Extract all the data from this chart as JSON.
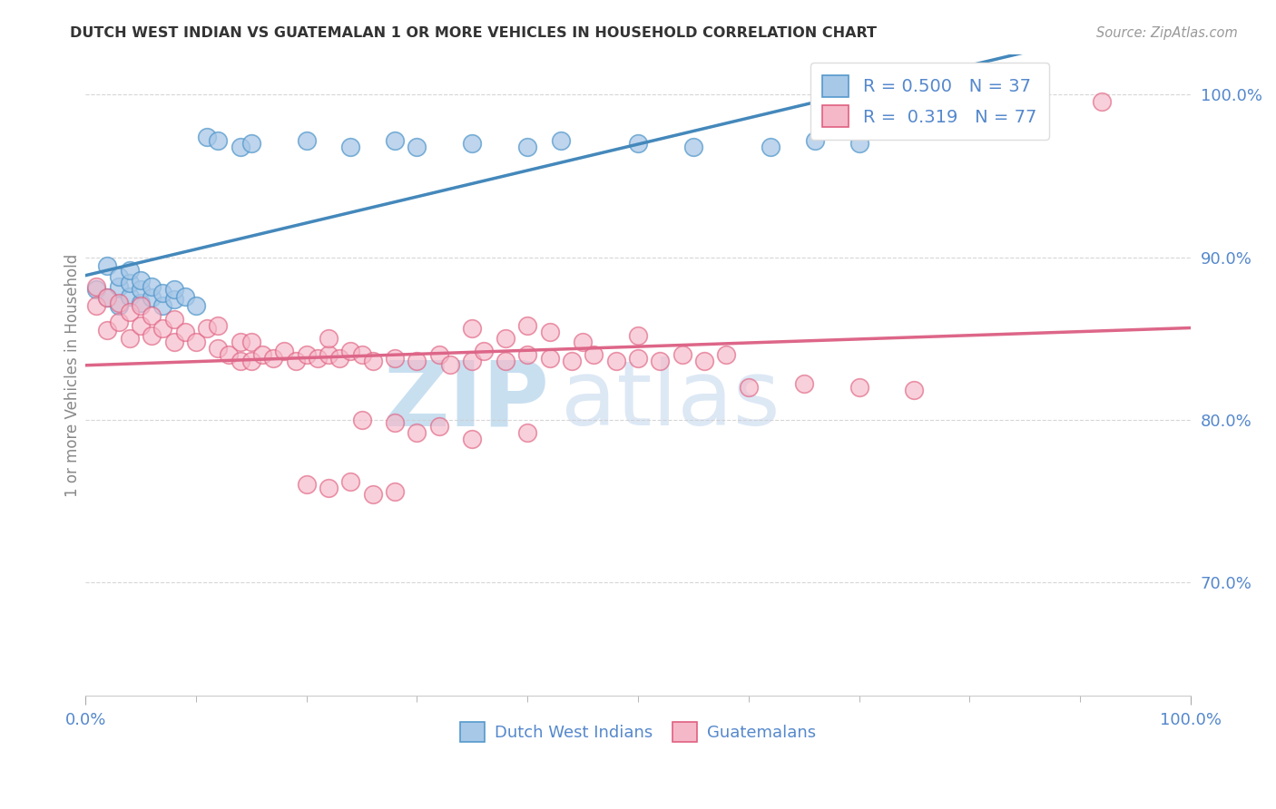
{
  "title": "DUTCH WEST INDIAN VS GUATEMALAN 1 OR MORE VEHICLES IN HOUSEHOLD CORRELATION CHART",
  "source": "Source: ZipAtlas.com",
  "ylabel": "1 or more Vehicles in Household",
  "legend_label1": "Dutch West Indians",
  "legend_label2": "Guatemalans",
  "R1": 0.5,
  "N1": 37,
  "R2": 0.319,
  "N2": 77,
  "color_blue_fill": "#a8c8e8",
  "color_blue_edge": "#5599cc",
  "color_blue_line": "#4488bb",
  "color_pink_fill": "#f5b8c8",
  "color_pink_edge": "#e06080",
  "color_pink_line": "#dd6688",
  "color_ytick": "#5588cc",
  "color_xtick": "#5588cc",
  "color_ylabel": "#888888",
  "color_grid": "#cccccc",
  "color_watermark_zip": "#c8dff0",
  "color_watermark_atlas": "#dde8f5",
  "xlim": [
    0.0,
    1.0
  ],
  "ylim": [
    0.63,
    1.025
  ],
  "ytick_values": [
    0.7,
    0.8,
    0.9,
    1.0
  ],
  "ytick_labels": [
    "70.0%",
    "80.0%",
    "90.0%",
    "100.0%"
  ],
  "blue_x": [
    0.01,
    0.02,
    0.02,
    0.03,
    0.03,
    0.03,
    0.04,
    0.04,
    0.04,
    0.05,
    0.05,
    0.05,
    0.06,
    0.06,
    0.07,
    0.07,
    0.08,
    0.08,
    0.09,
    0.1,
    0.11,
    0.12,
    0.14,
    0.15,
    0.2,
    0.24,
    0.28,
    0.3,
    0.35,
    0.4,
    0.43,
    0.5,
    0.55,
    0.62,
    0.66,
    0.7,
    0.78
  ],
  "blue_y": [
    0.88,
    0.875,
    0.895,
    0.87,
    0.882,
    0.888,
    0.876,
    0.884,
    0.892,
    0.872,
    0.88,
    0.886,
    0.875,
    0.882,
    0.87,
    0.878,
    0.874,
    0.88,
    0.876,
    0.87,
    0.974,
    0.972,
    0.968,
    0.97,
    0.972,
    0.968,
    0.972,
    0.968,
    0.97,
    0.968,
    0.972,
    0.97,
    0.968,
    0.968,
    0.972,
    0.97,
    0.996
  ],
  "pink_x": [
    0.01,
    0.01,
    0.02,
    0.02,
    0.03,
    0.03,
    0.04,
    0.04,
    0.05,
    0.05,
    0.06,
    0.06,
    0.07,
    0.08,
    0.08,
    0.09,
    0.1,
    0.11,
    0.12,
    0.12,
    0.13,
    0.14,
    0.14,
    0.15,
    0.15,
    0.16,
    0.17,
    0.18,
    0.19,
    0.2,
    0.21,
    0.22,
    0.22,
    0.23,
    0.24,
    0.25,
    0.26,
    0.28,
    0.3,
    0.32,
    0.33,
    0.35,
    0.36,
    0.38,
    0.4,
    0.42,
    0.44,
    0.46,
    0.48,
    0.5,
    0.52,
    0.54,
    0.56,
    0.58,
    0.35,
    0.38,
    0.4,
    0.42,
    0.45,
    0.5,
    0.25,
    0.28,
    0.3,
    0.32,
    0.35,
    0.4,
    0.6,
    0.65,
    0.7,
    0.75,
    0.2,
    0.22,
    0.24,
    0.26,
    0.28,
    0.85,
    0.92
  ],
  "pink_y": [
    0.87,
    0.882,
    0.855,
    0.875,
    0.86,
    0.872,
    0.85,
    0.866,
    0.858,
    0.87,
    0.852,
    0.864,
    0.856,
    0.848,
    0.862,
    0.854,
    0.848,
    0.856,
    0.844,
    0.858,
    0.84,
    0.836,
    0.848,
    0.836,
    0.848,
    0.84,
    0.838,
    0.842,
    0.836,
    0.84,
    0.838,
    0.84,
    0.85,
    0.838,
    0.842,
    0.84,
    0.836,
    0.838,
    0.836,
    0.84,
    0.834,
    0.836,
    0.842,
    0.836,
    0.84,
    0.838,
    0.836,
    0.84,
    0.836,
    0.838,
    0.836,
    0.84,
    0.836,
    0.84,
    0.856,
    0.85,
    0.858,
    0.854,
    0.848,
    0.852,
    0.8,
    0.798,
    0.792,
    0.796,
    0.788,
    0.792,
    0.82,
    0.822,
    0.82,
    0.818,
    0.76,
    0.758,
    0.762,
    0.754,
    0.756,
    0.996,
    0.996
  ]
}
